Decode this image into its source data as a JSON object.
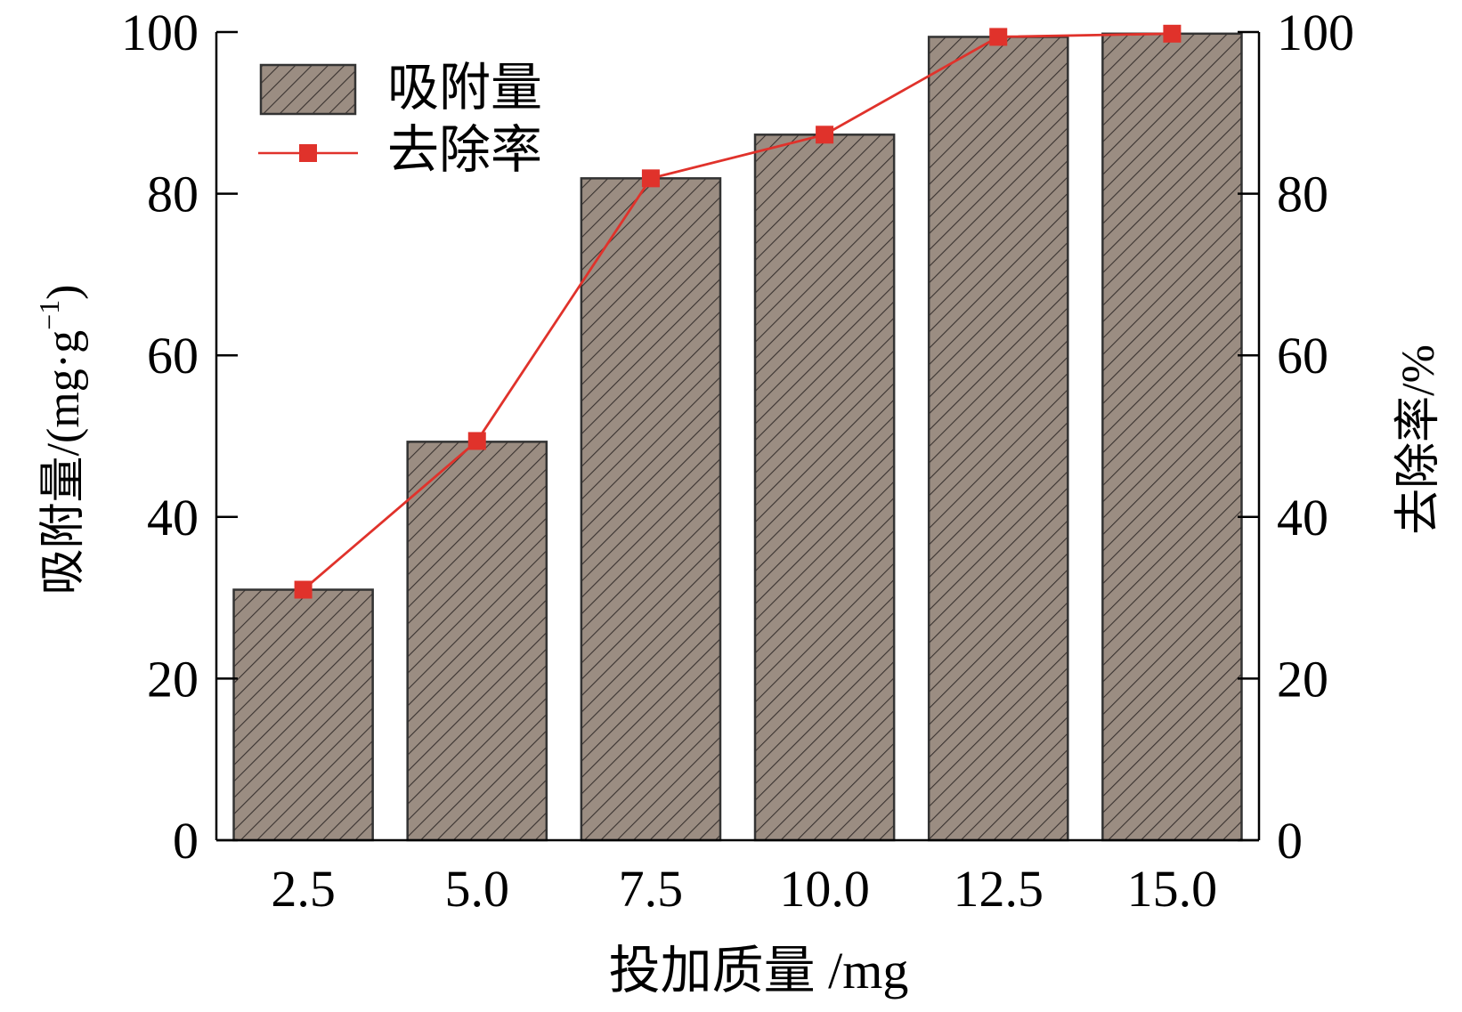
{
  "chart_data": {
    "type": "bar+line",
    "xlabel": "投加质量 /mg",
    "ylabel_left": "吸附量/(mg·g",
    "ylabel_left_sup": "−1",
    "ylabel_left_close": ")",
    "ylabel_right": "去除率/%",
    "categories": [
      "2.5",
      "5.0",
      "7.5",
      "10.0",
      "12.5",
      "15.0"
    ],
    "ylim_left": [
      0,
      100
    ],
    "ylim_right": [
      0,
      100
    ],
    "yticks_left": [
      "0",
      "20",
      "40",
      "60",
      "80",
      "100"
    ],
    "yticks_right": [
      "0",
      "20",
      "40",
      "60",
      "80",
      "100"
    ],
    "series": [
      {
        "name": "吸附量",
        "kind": "bar",
        "axis": "left",
        "values": [
          31.0,
          49.3,
          81.9,
          87.3,
          99.4,
          99.8
        ],
        "color": "#9b8d82",
        "hatch_color": "#3a3330"
      },
      {
        "name": "去除率",
        "kind": "line",
        "axis": "right",
        "values": [
          31.0,
          49.4,
          81.9,
          87.3,
          99.4,
          99.8
        ],
        "color": "#e0322b"
      }
    ],
    "legend": "top-left",
    "grid": false
  }
}
